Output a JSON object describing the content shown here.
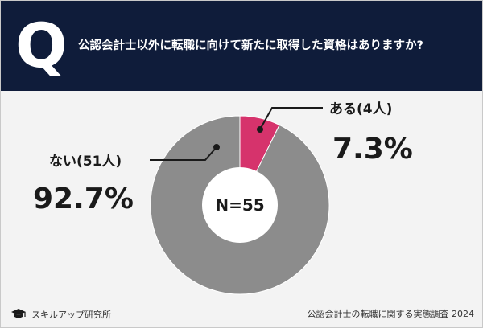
{
  "header": {
    "icon": "Q",
    "question": "公認会計士以外に転職に向けて新たに取得した資格はありますか?"
  },
  "chart_data": {
    "type": "pie",
    "title": "",
    "total_label": "N=55",
    "slices": [
      {
        "label": "ある(4人)",
        "count": 4,
        "percent": "7.3%",
        "value": 7.3,
        "color": "#d6336c"
      },
      {
        "label": "ない(51人)",
        "count": 51,
        "percent": "92.7%",
        "value": 92.7,
        "color": "#8c8c8c"
      }
    ]
  },
  "footer": {
    "brand": "スキルアップ研究所",
    "brand_icon": "graduation-cap-icon",
    "survey": "公認会計士の転職に関する実態調査 2024"
  }
}
